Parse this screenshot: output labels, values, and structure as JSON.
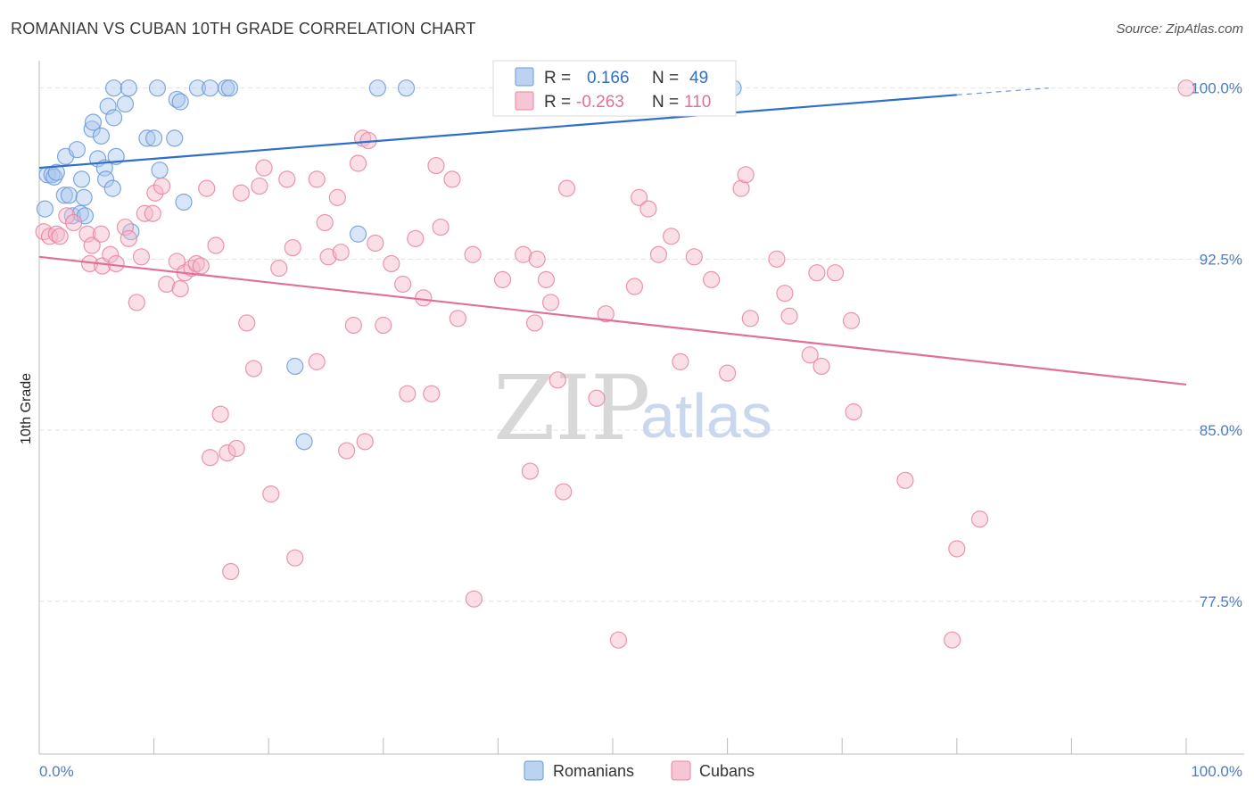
{
  "title": "ROMANIAN VS CUBAN 10TH GRADE CORRELATION CHART",
  "source": "Source: ZipAtlas.com",
  "watermark": {
    "zip": "ZIP",
    "atlas": "atlas"
  },
  "chart_data": {
    "type": "scatter",
    "xlabel": "",
    "ylabel": "10th Grade",
    "xlim": [
      0,
      100
    ],
    "ylim": [
      70.8,
      101.2
    ],
    "x_tick_labels": [
      {
        "value": 0,
        "label": "0.0%"
      },
      {
        "value": 100,
        "label": "100.0%"
      }
    ],
    "y_ticks": [
      {
        "value": 100,
        "label": "100.0%"
      },
      {
        "value": 92.5,
        "label": "92.5%"
      },
      {
        "value": 85,
        "label": "85.0%"
      },
      {
        "value": 77.5,
        "label": "77.5%"
      }
    ],
    "grid": true,
    "legend_placement": "top-center",
    "legend": {
      "r_label": "R =",
      "n_label": "N =",
      "entries": [
        {
          "r": "0.166",
          "n": "49"
        },
        {
          "r": "-0.263",
          "n": "110"
        }
      ]
    },
    "series": [
      {
        "name": "Romanians",
        "color": "#6a9ad8",
        "fill": "#aac7ee",
        "trend": {
          "x0": 0,
          "y0": 96.5,
          "x1": 80,
          "y1": 99.7,
          "dash_to_x": 88,
          "dash_to_y": 100.0
        },
        "points": [
          [
            0.5,
            94.7
          ],
          [
            0.7,
            96.2
          ],
          [
            1.1,
            96.2
          ],
          [
            1.3,
            96.1
          ],
          [
            1.5,
            96.3
          ],
          [
            2.2,
            95.3
          ],
          [
            2.3,
            97.0
          ],
          [
            2.6,
            95.3
          ],
          [
            2.9,
            94.4
          ],
          [
            3.3,
            97.3
          ],
          [
            3.6,
            94.5
          ],
          [
            3.7,
            96.0
          ],
          [
            3.9,
            95.2
          ],
          [
            4.0,
            94.4
          ],
          [
            4.6,
            98.2
          ],
          [
            4.7,
            98.5
          ],
          [
            5.1,
            96.9
          ],
          [
            5.4,
            97.9
          ],
          [
            5.7,
            96.5
          ],
          [
            5.8,
            96.0
          ],
          [
            6.0,
            99.2
          ],
          [
            6.4,
            95.6
          ],
          [
            6.5,
            98.7
          ],
          [
            6.7,
            97.0
          ],
          [
            6.5,
            100.0
          ],
          [
            7.5,
            99.3
          ],
          [
            7.8,
            100.0
          ],
          [
            8.0,
            93.7
          ],
          [
            9.4,
            97.8
          ],
          [
            10.0,
            97.8
          ],
          [
            10.3,
            100.0
          ],
          [
            10.5,
            96.4
          ],
          [
            11.8,
            97.8
          ],
          [
            12.0,
            99.5
          ],
          [
            12.3,
            99.4
          ],
          [
            12.6,
            95.0
          ],
          [
            13.8,
            100.0
          ],
          [
            14.9,
            100.0
          ],
          [
            16.3,
            100.0
          ],
          [
            16.6,
            100.0
          ],
          [
            22.3,
            87.8
          ],
          [
            23.1,
            84.5
          ],
          [
            27.8,
            93.6
          ],
          [
            29.5,
            100.0
          ],
          [
            32.0,
            100.0
          ],
          [
            48.0,
            100.0
          ],
          [
            52.0,
            100.0
          ],
          [
            54.5,
            100.0
          ],
          [
            60.5,
            100.0
          ]
        ]
      },
      {
        "name": "Cubans",
        "color": "#e8849f",
        "fill": "#f5b8ca",
        "trend": {
          "x0": 0,
          "y0": 92.6,
          "x1": 100,
          "y1": 87.0
        },
        "points": [
          [
            0.4,
            93.7
          ],
          [
            0.9,
            93.5
          ],
          [
            1.5,
            93.6
          ],
          [
            1.8,
            93.5
          ],
          [
            2.4,
            94.4
          ],
          [
            3.0,
            94.1
          ],
          [
            4.2,
            93.6
          ],
          [
            4.4,
            92.3
          ],
          [
            4.6,
            93.1
          ],
          [
            5.4,
            93.6
          ],
          [
            5.5,
            92.2
          ],
          [
            6.2,
            92.7
          ],
          [
            6.7,
            92.3
          ],
          [
            7.5,
            93.9
          ],
          [
            7.8,
            93.4
          ],
          [
            8.5,
            90.6
          ],
          [
            8.9,
            92.6
          ],
          [
            9.2,
            94.5
          ],
          [
            9.9,
            94.5
          ],
          [
            10.1,
            95.4
          ],
          [
            10.7,
            95.7
          ],
          [
            11.1,
            91.4
          ],
          [
            12.0,
            92.4
          ],
          [
            12.3,
            91.2
          ],
          [
            12.7,
            91.9
          ],
          [
            13.3,
            92.1
          ],
          [
            13.7,
            92.3
          ],
          [
            14.1,
            92.2
          ],
          [
            14.6,
            95.6
          ],
          [
            14.9,
            83.8
          ],
          [
            15.4,
            93.1
          ],
          [
            15.8,
            85.7
          ],
          [
            16.4,
            84.0
          ],
          [
            16.7,
            78.8
          ],
          [
            17.2,
            84.2
          ],
          [
            17.6,
            95.4
          ],
          [
            18.1,
            89.7
          ],
          [
            18.7,
            87.7
          ],
          [
            19.2,
            95.7
          ],
          [
            19.6,
            96.5
          ],
          [
            20.2,
            82.2
          ],
          [
            20.9,
            92.1
          ],
          [
            21.6,
            96.0
          ],
          [
            22.1,
            93.0
          ],
          [
            22.3,
            79.4
          ],
          [
            24.2,
            96.0
          ],
          [
            24.2,
            88.0
          ],
          [
            24.9,
            94.1
          ],
          [
            25.2,
            92.6
          ],
          [
            26.0,
            95.2
          ],
          [
            26.3,
            92.8
          ],
          [
            26.8,
            84.1
          ],
          [
            27.4,
            89.6
          ],
          [
            27.8,
            96.7
          ],
          [
            28.2,
            97.8
          ],
          [
            28.4,
            84.5
          ],
          [
            28.7,
            97.7
          ],
          [
            29.3,
            93.2
          ],
          [
            30.0,
            89.6
          ],
          [
            30.7,
            92.3
          ],
          [
            31.7,
            91.4
          ],
          [
            32.1,
            86.6
          ],
          [
            32.8,
            93.4
          ],
          [
            33.5,
            90.8
          ],
          [
            34.2,
            86.6
          ],
          [
            34.6,
            96.6
          ],
          [
            35.0,
            93.9
          ],
          [
            36.0,
            96.0
          ],
          [
            36.5,
            89.9
          ],
          [
            37.8,
            92.7
          ],
          [
            37.9,
            77.6
          ],
          [
            40.4,
            91.6
          ],
          [
            42.2,
            92.7
          ],
          [
            42.8,
            83.2
          ],
          [
            43.2,
            89.7
          ],
          [
            43.4,
            92.5
          ],
          [
            44.2,
            91.6
          ],
          [
            44.6,
            90.6
          ],
          [
            45.2,
            87.2
          ],
          [
            45.7,
            82.3
          ],
          [
            46.0,
            95.6
          ],
          [
            48.6,
            86.4
          ],
          [
            49.4,
            90.1
          ],
          [
            50.5,
            75.8
          ],
          [
            51.9,
            91.3
          ],
          [
            52.3,
            95.2
          ],
          [
            53.1,
            94.7
          ],
          [
            54.0,
            92.7
          ],
          [
            55.1,
            93.5
          ],
          [
            55.9,
            88.0
          ],
          [
            57.1,
            92.6
          ],
          [
            58.6,
            91.6
          ],
          [
            60.0,
            87.5
          ],
          [
            61.2,
            95.6
          ],
          [
            61.6,
            96.2
          ],
          [
            62.0,
            89.9
          ],
          [
            64.3,
            92.5
          ],
          [
            65.0,
            91.0
          ],
          [
            65.4,
            90.0
          ],
          [
            67.2,
            88.3
          ],
          [
            67.8,
            91.9
          ],
          [
            68.2,
            87.8
          ],
          [
            69.4,
            91.9
          ],
          [
            70.8,
            89.8
          ],
          [
            71.0,
            85.8
          ],
          [
            75.5,
            82.8
          ],
          [
            79.6,
            75.8
          ],
          [
            80.0,
            79.8
          ],
          [
            82.0,
            81.1
          ],
          [
            100.0,
            100.0
          ]
        ]
      }
    ]
  }
}
